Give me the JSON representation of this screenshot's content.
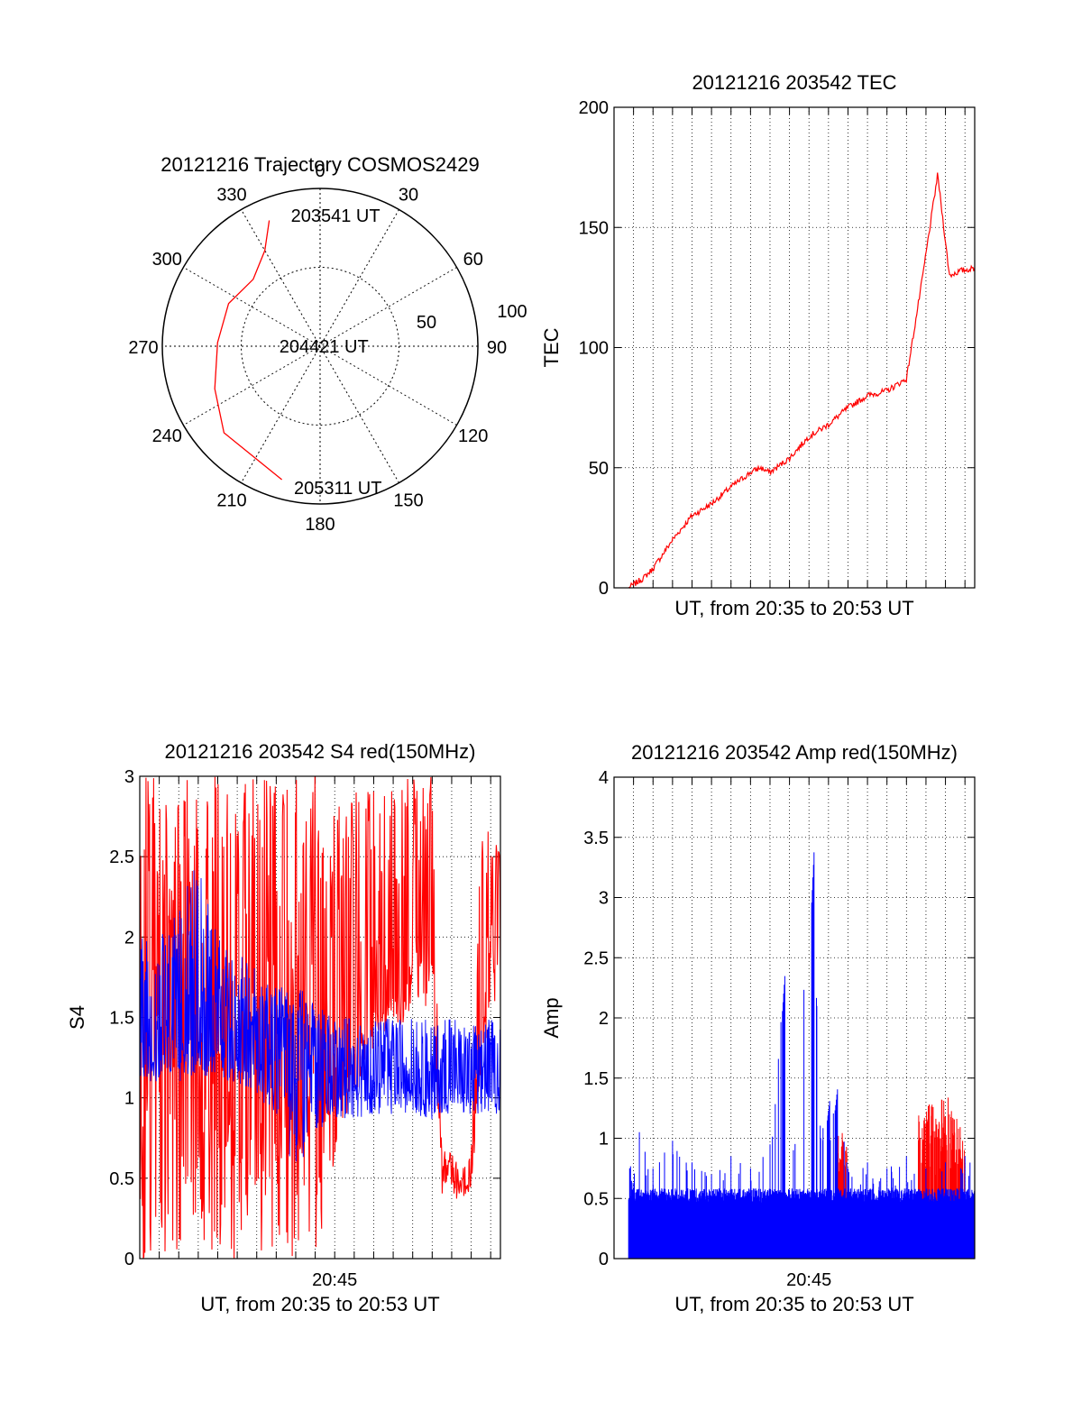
{
  "chart_data": [
    {
      "type": "polar",
      "title": "20121216 Trajectory COSMOS2429",
      "azimuth_labels": [
        "0",
        "30",
        "60",
        "90",
        "120",
        "150",
        "180",
        "210",
        "240",
        "270",
        "300",
        "330"
      ],
      "radius_labels": [
        "50",
        "100"
      ],
      "trajectory_color": "#ff0000",
      "trajectory": [
        {
          "az": 338,
          "r": 86
        },
        {
          "az": 330,
          "r": 70
        },
        {
          "az": 315,
          "r": 60
        },
        {
          "az": 295,
          "r": 64
        },
        {
          "az": 272,
          "r": 65
        },
        {
          "az": 248,
          "r": 72
        },
        {
          "az": 228,
          "r": 82
        },
        {
          "az": 196,
          "r": 88
        }
      ],
      "annotations": [
        {
          "label": "203541 UT",
          "az": 3,
          "r": 83
        },
        {
          "label": "204421 UT",
          "az": 272,
          "r": 3
        },
        {
          "label": "205311 UT",
          "az": 176,
          "r": 90
        }
      ]
    },
    {
      "type": "line",
      "title": "20121216 203542 TEC",
      "xlabel": "UT, from 20:35 to 20:53 UT",
      "ylabel": "TEC",
      "xlim": [
        0,
        18.5
      ],
      "ylim": [
        0,
        200
      ],
      "yticks": [
        "0",
        "50",
        "100",
        "150",
        "200"
      ],
      "grid": true,
      "series": [
        {
          "color": "#ff0000",
          "x": [
            0.75,
            1.5,
            2.0,
            3.0,
            4.0,
            5.0,
            6.0,
            7.0,
            7.5,
            8.0,
            9.0,
            10.0,
            11.0,
            12.0,
            13.0,
            14.0,
            15.0,
            15.8,
            16.6,
            17.2,
            17.8,
            18.5
          ],
          "y": [
            0,
            4,
            8,
            20,
            30,
            35,
            42,
            48,
            50,
            48,
            54,
            63,
            68,
            75,
            80,
            82,
            87,
            128,
            172,
            130,
            132,
            133
          ]
        }
      ]
    },
    {
      "type": "line",
      "title": "20121216 203542 S4 red(150MHz)",
      "xlabel": "UT, from 20:35 to 20:53 UT",
      "ylabel": "S4",
      "xtick_label": "20:45",
      "xlim": [
        0,
        18.5
      ],
      "ylim": [
        0,
        3
      ],
      "yticks": [
        "0",
        "0.5",
        "1",
        "1.5",
        "2",
        "2.5",
        "3"
      ],
      "grid": true,
      "series": [
        {
          "color": "#ff0000",
          "x": [
            0,
            1,
            2,
            3,
            4,
            5,
            6,
            7,
            8,
            9,
            10,
            11,
            12,
            13,
            14,
            15,
            15.5,
            16,
            16.5,
            17,
            17.5,
            18,
            18.5
          ],
          "y": [
            1.4,
            1.5,
            1.6,
            1.5,
            1.5,
            1.6,
            1.5,
            1.3,
            1.4,
            1.3,
            1.4,
            1.6,
            1.7,
            1.8,
            2.0,
            2.3,
            0.55,
            0.5,
            0.45,
            0.5,
            1.5,
            2.0,
            2.2
          ],
          "y_min": [
            0,
            0,
            0,
            0,
            0,
            0,
            0,
            0,
            0,
            0,
            0.4,
            1.0,
            1.3,
            1.4,
            1.5,
            1.6,
            0.4,
            0.38,
            0.36,
            0.4,
            1.2,
            1.4,
            1.5
          ],
          "y_max": [
            3,
            3,
            3,
            3,
            3,
            3,
            3,
            3,
            3,
            3,
            2.8,
            3,
            3,
            3,
            3,
            3,
            0.7,
            0.65,
            0.6,
            0.65,
            2.7,
            2.7,
            2.5
          ]
        },
        {
          "color": "#0000ff",
          "x": [
            0,
            1,
            2,
            3,
            4,
            5,
            6,
            7,
            8,
            9,
            10,
            11,
            12,
            13,
            14,
            15,
            16,
            17,
            18,
            18.5
          ],
          "y": [
            1.35,
            1.4,
            1.5,
            1.5,
            1.45,
            1.4,
            1.4,
            1.35,
            1.3,
            1.25,
            1.2,
            1.15,
            1.15,
            1.2,
            1.15,
            1.1,
            1.15,
            1.1,
            1.15,
            1.1
          ],
          "y_min": [
            1.1,
            1.1,
            1.1,
            1.15,
            1.1,
            1.1,
            1.0,
            0.9,
            0.5,
            0.8,
            0.85,
            0.85,
            0.9,
            0.9,
            0.9,
            0.85,
            0.9,
            0.9,
            0.9,
            0.9
          ],
          "y_max": [
            2.0,
            2.0,
            2.2,
            2.5,
            2.0,
            1.9,
            1.8,
            1.7,
            1.7,
            1.6,
            1.5,
            1.5,
            1.5,
            1.5,
            1.5,
            1.5,
            1.5,
            1.5,
            1.5,
            1.45
          ]
        }
      ]
    },
    {
      "type": "bar",
      "title": "20121216 203542 Amp red(150MHz)",
      "xlabel": "UT, from 20:35 to 20:53 UT",
      "ylabel": "Amp",
      "xtick_label": "20:45",
      "xlim": [
        0,
        18.5
      ],
      "ylim": [
        0,
        4
      ],
      "yticks": [
        "0",
        "0.5",
        "1",
        "1.5",
        "2",
        "2.5",
        "3",
        "3.5",
        "4"
      ],
      "grid": true,
      "series": [
        {
          "color": "#ff0000",
          "x": [
            11.6,
            11.8,
            15.8,
            16.2,
            16.6,
            17.0,
            17.4,
            17.8
          ],
          "y": [
            1.05,
            0.95,
            1.2,
            1.3,
            1.2,
            1.35,
            1.25,
            1.1
          ]
        },
        {
          "color": "#0000ff",
          "baseline": 0.5,
          "x": [
            0.8,
            1.3,
            2.0,
            3.0,
            4.0,
            5.0,
            6.0,
            7.0,
            8.0,
            8.7,
            9.2,
            10.2,
            10.6,
            11.0,
            11.4,
            12.0,
            13.0,
            14.0,
            15.0,
            16.0,
            17.0,
            18.0,
            18.5
          ],
          "y": [
            0.75,
            1.05,
            0.75,
            0.98,
            0.8,
            0.7,
            0.85,
            0.75,
            0.95,
            2.42,
            0.9,
            3.48,
            1.0,
            1.35,
            1.45,
            0.75,
            0.8,
            0.75,
            0.85,
            0.75,
            0.8,
            0.85,
            0.75
          ]
        }
      ]
    }
  ]
}
